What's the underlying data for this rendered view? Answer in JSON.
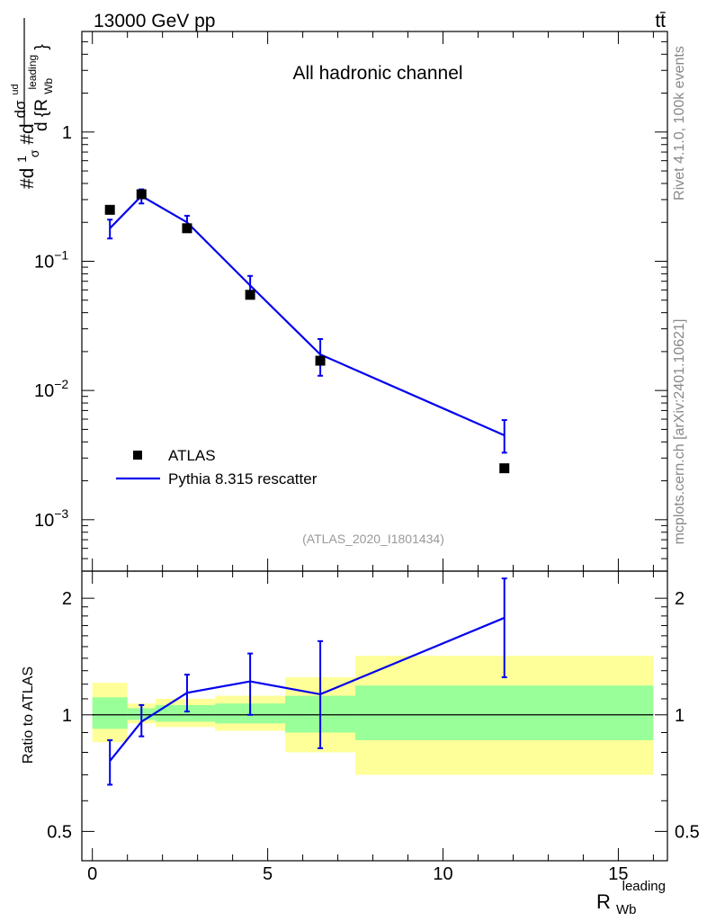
{
  "header": {
    "energy_label": "13000 GeV pp",
    "process_label": "tt̄"
  },
  "side_labels": {
    "rivet": "Rivet 4.1.0,  100k events",
    "mcplots": "mcplots.cern.ch [arXiv:2401.10621]"
  },
  "colors": {
    "mc_line": "#0000ee",
    "data_marker": "#000000",
    "band_inner": "#99ff99",
    "band_outer": "#ffff99",
    "axis": "#000000",
    "watermark": "#999999",
    "side_text": "#888888"
  },
  "chart_data": [
    {
      "id": "main",
      "type": "scatter",
      "title": "All hadronic channel",
      "analysis_tag": "(ATLAS_2020_I1801434)",
      "xlabel": "R_Wb^leading",
      "ylabel": "#d1/σ#d dσ^ud / d{R_Wb^leading}",
      "ylabel_parts": {
        "a": "#d",
        "b": "1",
        "c": "σ",
        "d": "#d",
        "e": "dσ",
        "f": "ud",
        "g": "d {R",
        "h": "Wb",
        "i": "leading",
        "j": "}"
      },
      "yscale": "log",
      "ylim": [
        0.0004,
        6
      ],
      "xlim": [
        -0.3,
        16.4
      ],
      "ytick_labels": [
        {
          "value": 1,
          "base": "1",
          "exp": ""
        },
        {
          "value": 0.1,
          "base": "10",
          "exp": "−1"
        },
        {
          "value": 0.01,
          "base": "10",
          "exp": "−2"
        },
        {
          "value": 0.001,
          "base": "10",
          "exp": "−3"
        }
      ],
      "legend": {
        "position": "bottom-left",
        "entries": [
          {
            "label": "ATLAS",
            "style": "marker"
          },
          {
            "label": "Pythia 8.315 rescatter",
            "style": "line"
          }
        ]
      },
      "series": [
        {
          "name": "ATLAS",
          "style": "marker",
          "x": [
            0.5,
            1.4,
            2.7,
            4.5,
            6.5,
            11.75
          ],
          "y": [
            0.25,
            0.33,
            0.18,
            0.055,
            0.017,
            0.0025
          ]
        },
        {
          "name": "Pythia 8.315 rescatter",
          "style": "line",
          "x": [
            0.5,
            1.4,
            2.7,
            4.5,
            6.5,
            11.75
          ],
          "y": [
            0.18,
            0.32,
            0.2,
            0.065,
            0.019,
            0.0045
          ],
          "err_low": [
            0.15,
            0.28,
            0.18,
            0.056,
            0.013,
            0.0033
          ],
          "err_high": [
            0.21,
            0.36,
            0.225,
            0.077,
            0.025,
            0.0059
          ]
        }
      ]
    },
    {
      "id": "ratio",
      "type": "line",
      "ylabel": "Ratio to ATLAS",
      "xlabel": "R_Wb^leading",
      "xlabel_parts": {
        "base": "R",
        "sub": "Wb",
        "sup": "leading"
      },
      "yscale": "log",
      "ylim": [
        0.42,
        2.35
      ],
      "xlim": [
        -0.3,
        16.4
      ],
      "reference_line": 1,
      "xtick_labels": [
        {
          "value": 0,
          "label": "0"
        },
        {
          "value": 5,
          "label": "5"
        },
        {
          "value": 10,
          "label": "10"
        },
        {
          "value": 15,
          "label": "15"
        }
      ],
      "ytick_labels": [
        {
          "value": 0.5,
          "label": "0.5"
        },
        {
          "value": 1,
          "label": "1"
        },
        {
          "value": 2,
          "label": "2"
        }
      ],
      "bands": [
        {
          "x_lo": 0.0,
          "x_hi": 1.0,
          "inner": [
            0.92,
            1.11
          ],
          "outer": [
            0.85,
            1.21
          ]
        },
        {
          "x_lo": 1.0,
          "x_hi": 1.8,
          "inner": [
            0.97,
            1.04
          ],
          "outer": [
            0.95,
            1.07
          ]
        },
        {
          "x_lo": 1.8,
          "x_hi": 3.5,
          "inner": [
            0.96,
            1.06
          ],
          "outer": [
            0.93,
            1.1
          ]
        },
        {
          "x_lo": 3.5,
          "x_hi": 5.5,
          "inner": [
            0.95,
            1.07
          ],
          "outer": [
            0.91,
            1.12
          ]
        },
        {
          "x_lo": 5.5,
          "x_hi": 7.5,
          "inner": [
            0.9,
            1.12
          ],
          "outer": [
            0.8,
            1.25
          ]
        },
        {
          "x_lo": 7.5,
          "x_hi": 16.0,
          "inner": [
            0.86,
            1.19
          ],
          "outer": [
            0.7,
            1.42
          ]
        }
      ],
      "series": [
        {
          "name": "Pythia 8.315 rescatter",
          "x": [
            0.5,
            1.4,
            2.7,
            4.5,
            6.5,
            11.75
          ],
          "y": [
            0.76,
            0.96,
            1.14,
            1.22,
            1.13,
            1.78
          ],
          "err_low": [
            0.66,
            0.88,
            1.02,
            1.0,
            0.82,
            1.25
          ],
          "err_high": [
            0.86,
            1.06,
            1.27,
            1.44,
            1.55,
            2.25
          ]
        }
      ]
    }
  ]
}
